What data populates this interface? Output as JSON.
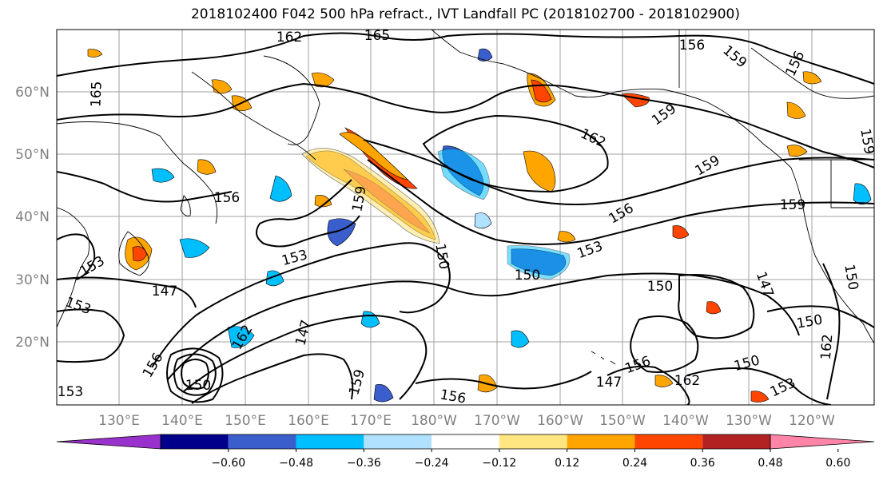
{
  "title": "2018102400 F042 500 hPa refract., IVT Landfall PC (2018102700 - 2018102900)",
  "latitude_labels": [
    "60°N",
    "50°N",
    "40°N",
    "30°N",
    "20°N"
  ],
  "longitude_labels": [
    "130°E",
    "140°E",
    "150°E",
    "160°E",
    "170°E",
    "180°W",
    "170°W",
    "160°W",
    "150°W",
    "140°W",
    "130°W",
    "120°W"
  ],
  "contour_labels": [
    "162",
    "165",
    "156",
    "159",
    "156",
    "165",
    "159",
    "162",
    "156",
    "159",
    "159",
    "156",
    "159",
    "153",
    "153",
    "150",
    "150",
    "147",
    "147",
    "153",
    "150",
    "147",
    "162",
    "153",
    "150",
    "156",
    "156",
    "147",
    "162",
    "159",
    "150",
    "156",
    "150",
    "153",
    "162",
    "159",
    "153",
    "150"
  ],
  "colorbar": {
    "ticks": [
      "−0.60",
      "−0.48",
      "−0.36",
      "−0.24",
      "−0.12",
      "0.12",
      "0.24",
      "0.36",
      "0.48",
      "0.60"
    ],
    "colors": [
      "#9932cc",
      "#00008b",
      "#3a5fcd",
      "#00bfff",
      "#b0e2ff",
      "#ffffff",
      "#ffe680",
      "#ffa500",
      "#ff4500",
      "#b22222",
      "#ff85a8"
    ]
  },
  "colors": {
    "contour": "#000000",
    "grid": "#a0a0a0",
    "axis_label": "#808080"
  }
}
